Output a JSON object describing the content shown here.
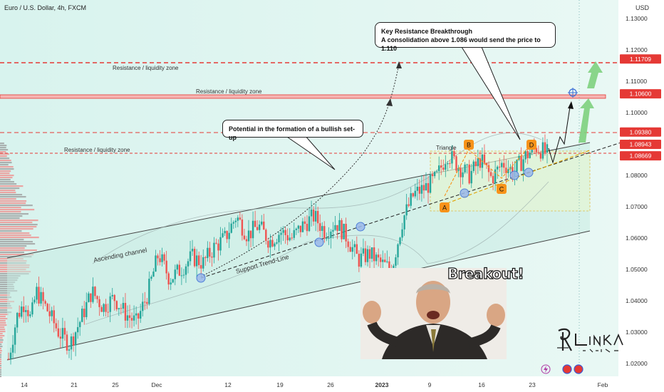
{
  "header": {
    "symbol_title": "Euro / U.S. Dollar, 4h, FXCM",
    "axis_unit": "USD"
  },
  "colors": {
    "resistance": "#e53935",
    "channel": "#4a4a4a",
    "up": "#26a69a",
    "down": "#ef5350",
    "accent": "#f7931a",
    "fill": "#cfeee6"
  },
  "chart_data": {
    "type": "candlestick",
    "y_axis": {
      "min": 1.015,
      "max": 1.135,
      "ticks": [
        "1.13000",
        "1.12000",
        "1.11000",
        "1.10000",
        "1.09000",
        "1.08000",
        "1.07000",
        "1.06000",
        "1.05000",
        "1.04000",
        "1.03000",
        "1.02000"
      ]
    },
    "x_axis": {
      "tick_labels": [
        "14",
        "21",
        "25",
        "Dec",
        "12",
        "19",
        "26",
        "2023",
        "9",
        "16",
        "23",
        "Feb"
      ]
    },
    "price_labels": [
      {
        "value": 1.11709,
        "label": "1.11709"
      },
      {
        "value": 1.106,
        "label": "1.10600"
      },
      {
        "value": 1.0938,
        "label": "1.09380"
      },
      {
        "value": 1.08943,
        "label": "1.08943"
      },
      {
        "value": 1.08669,
        "label": "1.08669"
      }
    ],
    "zones": [
      {
        "label": "Resistance / liquidity zone",
        "value": 1.11709
      },
      {
        "label": "Resistance / liquidity zone",
        "value": 1.106
      },
      {
        "label": "Resistance / liquidity zone",
        "value": 1.0938
      }
    ],
    "pattern_points": [
      "A",
      "B",
      "C",
      "D"
    ],
    "annotations": {
      "ascending_channel": "Ascending channel",
      "support_trend_line": "Support Trend-Line",
      "triangle": "Triangle",
      "bullish_setup": "Potential in the formation of a bullish set-up",
      "breakout_title": "Key Resistance Breakthrough",
      "breakout_text": "A consolidation above 1.086 would send the price to 1.110",
      "breakout_caption": "Breakout!"
    },
    "price_path": [
      {
        "t": 0,
        "p": 1.0215
      },
      {
        "t": 3,
        "p": 1.035
      },
      {
        "t": 6,
        "p": 1.04
      },
      {
        "t": 8,
        "p": 1.034
      },
      {
        "t": 10,
        "p": 1.043
      },
      {
        "t": 14,
        "p": 1.037
      },
      {
        "t": 18,
        "p": 1.03
      },
      {
        "t": 22,
        "p": 1.026
      },
      {
        "t": 26,
        "p": 1.034
      },
      {
        "t": 30,
        "p": 1.043
      },
      {
        "t": 34,
        "p": 1.038
      },
      {
        "t": 38,
        "p": 1.041
      },
      {
        "t": 42,
        "p": 1.036
      },
      {
        "t": 46,
        "p": 1.033
      },
      {
        "t": 50,
        "p": 1.042
      },
      {
        "t": 54,
        "p": 1.055
      },
      {
        "t": 58,
        "p": 1.047
      },
      {
        "t": 62,
        "p": 1.05
      },
      {
        "t": 66,
        "p": 1.054
      },
      {
        "t": 70,
        "p": 1.052
      },
      {
        "t": 74,
        "p": 1.057
      },
      {
        "t": 78,
        "p": 1.06
      },
      {
        "t": 82,
        "p": 1.067
      },
      {
        "t": 86,
        "p": 1.061
      },
      {
        "t": 90,
        "p": 1.064
      },
      {
        "t": 94,
        "p": 1.059
      },
      {
        "t": 98,
        "p": 1.062
      },
      {
        "t": 102,
        "p": 1.06
      },
      {
        "t": 106,
        "p": 1.064
      },
      {
        "t": 110,
        "p": 1.067
      },
      {
        "t": 114,
        "p": 1.062
      },
      {
        "t": 118,
        "p": 1.065
      },
      {
        "t": 122,
        "p": 1.06
      },
      {
        "t": 126,
        "p": 1.053
      },
      {
        "t": 130,
        "p": 1.055
      },
      {
        "t": 134,
        "p": 1.052
      },
      {
        "t": 138,
        "p": 1.05
      },
      {
        "t": 142,
        "p": 1.066
      },
      {
        "t": 146,
        "p": 1.074
      },
      {
        "t": 150,
        "p": 1.076
      },
      {
        "t": 154,
        "p": 1.079
      },
      {
        "t": 158,
        "p": 1.087
      },
      {
        "t": 162,
        "p": 1.083
      },
      {
        "t": 166,
        "p": 1.08
      },
      {
        "t": 170,
        "p": 1.085
      },
      {
        "t": 174,
        "p": 1.079
      },
      {
        "t": 178,
        "p": 1.084
      },
      {
        "t": 182,
        "p": 1.081
      },
      {
        "t": 186,
        "p": 1.086
      },
      {
        "t": 190,
        "p": 1.089
      },
      {
        "t": 194,
        "p": 1.087
      }
    ]
  }
}
